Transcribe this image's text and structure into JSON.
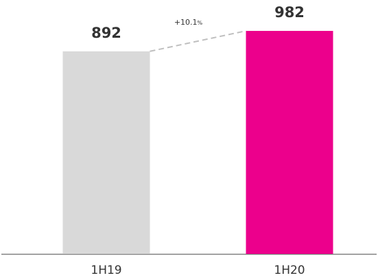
{
  "chart_data": {
    "type": "bar",
    "title": "",
    "xlabel": "",
    "ylabel": "",
    "categories": [
      "1H19",
      "1H20"
    ],
    "values": [
      892,
      982
    ],
    "value_labels": [
      "892",
      "982"
    ],
    "colors": [
      "#d9d9d9",
      "#ec008c"
    ],
    "ylim": [
      0,
      982
    ],
    "grid": false,
    "legend": "none",
    "annotation": {
      "text": "+10.1",
      "suffix": "%",
      "connector": "dashed",
      "connector_color": "#bfbfbf"
    },
    "axis_color": "#808080"
  }
}
